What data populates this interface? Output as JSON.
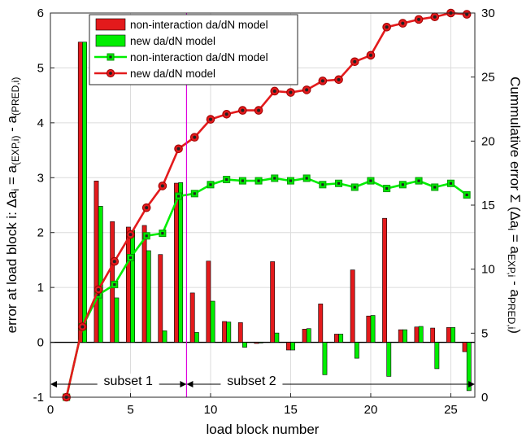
{
  "chart_data": {
    "type": "bar",
    "x": [
      2,
      3,
      4,
      5,
      6,
      7,
      8,
      9,
      10,
      11,
      12,
      13,
      14,
      15,
      16,
      17,
      18,
      19,
      20,
      21,
      22,
      23,
      24,
      25,
      26
    ],
    "bar_series": [
      {
        "name": "non-interaction da/dN model",
        "color": "#e31a1c",
        "values": [
          5.47,
          2.94,
          2.2,
          2.1,
          2.13,
          1.6,
          2.9,
          0.9,
          1.48,
          0.38,
          0.36,
          -0.02,
          1.47,
          -0.14,
          0.24,
          0.7,
          0.15,
          1.32,
          0.48,
          2.26,
          0.23,
          0.28,
          0.26,
          0.27,
          -0.17
        ]
      },
      {
        "name": "new da/dN model",
        "color": "#00ee00",
        "values": [
          5.47,
          2.48,
          0.81,
          2.04,
          1.67,
          0.21,
          2.91,
          0.18,
          0.75,
          0.37,
          -0.09,
          -0.01,
          0.17,
          -0.14,
          0.25,
          -0.59,
          0.15,
          -0.29,
          0.49,
          -0.62,
          0.23,
          0.29,
          -0.48,
          0.27,
          -0.88
        ]
      }
    ],
    "line_series": [
      {
        "name": "non-interaction da/dN model",
        "color": "#00ee00",
        "marker": "square",
        "x": [
          1,
          2,
          3,
          4,
          5,
          6,
          7,
          8,
          9,
          10,
          11,
          12,
          13,
          14,
          15,
          16,
          17,
          18,
          19,
          20,
          21,
          22,
          23,
          24,
          25,
          26
        ],
        "values": [
          0.0,
          5.5,
          8.0,
          8.8,
          10.9,
          12.6,
          12.8,
          15.7,
          15.9,
          16.6,
          17.0,
          16.9,
          16.9,
          17.1,
          16.9,
          17.1,
          16.6,
          16.7,
          16.4,
          16.9,
          16.3,
          16.6,
          16.9,
          16.4,
          16.7,
          15.8
        ]
      },
      {
        "name": "new da/dN model",
        "color": "#e31a1c",
        "marker": "circle",
        "x": [
          1,
          2,
          3,
          4,
          5,
          6,
          7,
          8,
          9,
          10,
          11,
          12,
          13,
          14,
          15,
          16,
          17,
          18,
          19,
          20,
          21,
          22,
          23,
          24,
          25,
          26
        ],
        "values": [
          0.0,
          5.5,
          8.4,
          10.6,
          12.7,
          14.8,
          16.5,
          19.4,
          20.3,
          21.7,
          22.1,
          22.4,
          22.4,
          23.9,
          23.8,
          24.0,
          24.7,
          24.8,
          26.2,
          26.7,
          28.9,
          29.2,
          29.5,
          29.7,
          30.0,
          29.9
        ]
      }
    ],
    "xlabel": "load block number",
    "ylabel_left": "error at load block i: Δa",
    "ylabel_left_parts": [
      "error at load block i: Δa",
      "i",
      " = a",
      "(EXP,i)",
      " - a",
      "(PRED,i)"
    ],
    "ylabel_right_parts": [
      "Cummulative error Σ (Δa",
      "i",
      " = a",
      "EXP,i",
      " - a",
      "PRED,i",
      ")"
    ],
    "xlim": [
      0,
      26.5
    ],
    "ylim_left": [
      -1,
      6
    ],
    "ylim_right": [
      0,
      30
    ],
    "xticks": [
      0,
      5,
      10,
      15,
      20,
      25
    ],
    "yticks_left": [
      -1,
      0,
      1,
      2,
      3,
      4,
      5,
      6
    ],
    "yticks_right": [
      0,
      5,
      10,
      15,
      20,
      25,
      30
    ],
    "grid": true,
    "legend_placement": "top-center",
    "divider_x": 8.5,
    "divider_color": "#dd00dd",
    "subset_annotations": [
      {
        "label": "subset 1",
        "from": 0,
        "to": 8.5
      },
      {
        "label": "subset 2",
        "from": 8.5,
        "to": 26.5
      }
    ]
  }
}
